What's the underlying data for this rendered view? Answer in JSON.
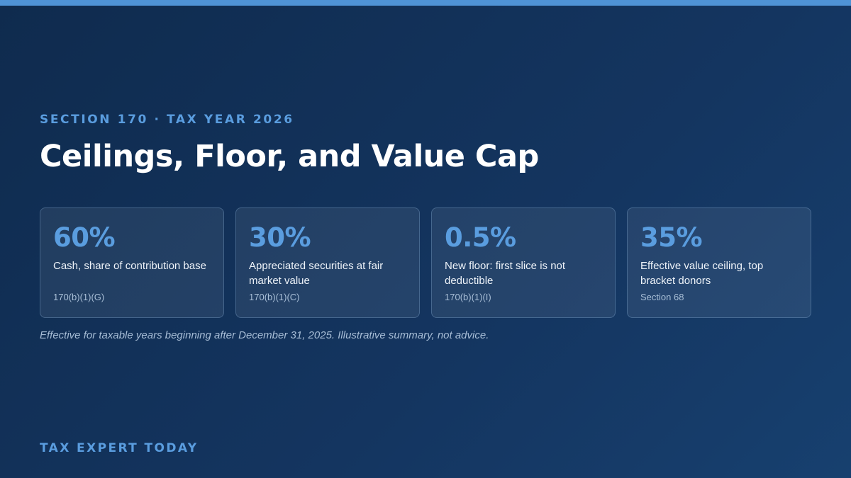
{
  "header": {
    "eyebrow": "SECTION 170 · TAX YEAR 2026",
    "title": "Ceilings, Floor, and Value Cap"
  },
  "cards": [
    {
      "value": "60%",
      "description": "Cash, share of contribution base",
      "reference": "170(b)(1)(G)"
    },
    {
      "value": "30%",
      "description": "Appreciated securities at fair market value",
      "reference": "170(b)(1)(C)"
    },
    {
      "value": "0.5%",
      "description": "New floor: first slice is not deductible",
      "reference": "170(b)(1)(I)"
    },
    {
      "value": "35%",
      "description": "Effective value ceiling, top bracket donors",
      "reference": "Section 68"
    }
  ],
  "footnote": "Effective for taxable years beginning after December 31, 2025. Illustrative summary, not advice.",
  "brand": "TAX EXPERT TODAY",
  "colors": {
    "background": "#0f2b4e",
    "accent": "#5a9ddf",
    "top_bar": "#4f93d6",
    "title": "#ffffff"
  }
}
